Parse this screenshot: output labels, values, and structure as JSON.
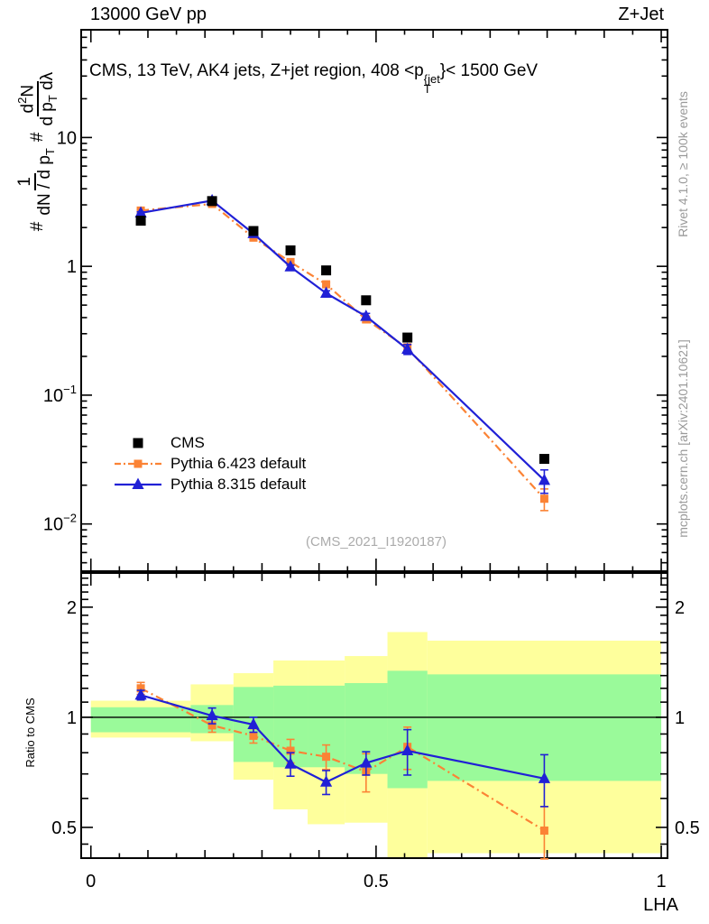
{
  "header": {
    "left": "13000 GeV pp",
    "right": "Z+Jet"
  },
  "title_parts": {
    "prefix": "CMS, 13 TeV, AK4 jets, Z+jet region, 408 <p",
    "sup": "{jet",
    "sub": "T",
    "suffix": "}< 1500 GeV"
  },
  "ylabel_parts": {
    "hash1": "#",
    "f1_num": "1",
    "f1_den_a": "dN / d p",
    "f1_den_sub": "T",
    "hash2": "#",
    "f2_num_a": "d",
    "f2_num_sup": "2",
    "f2_num_b": "N",
    "f2_den_a": "d p",
    "f2_den_sub": "T",
    "f2_den_b": " dλ"
  },
  "ratio_ylabel": "Ratio to CMS",
  "watermark": "(CMS_2021_I1920187)",
  "side_notes": {
    "top": "Rivet 4.1.0, ≥ 100k events",
    "bottom": "mcplots.cern.ch [arXiv:2401.10621]"
  },
  "legend": {
    "items": [
      {
        "label": "CMS",
        "color": "#000000",
        "marker": "square",
        "line": "none",
        "marker_size": 11
      },
      {
        "label": "Pythia 6.423 default",
        "color": "#fb8335",
        "marker": "square",
        "line": "dashdot",
        "marker_size": 9
      },
      {
        "label": "Pythia 8.315 default",
        "color": "#2020d6",
        "marker": "triangle",
        "line": "solid",
        "marker_size": 12
      }
    ]
  },
  "chart_data": {
    "type": "line",
    "title": "CMS, 13 TeV, AK4 jets, Z+jet region, 408 < pT{jet} < 1500 GeV",
    "xlabel": "LHA",
    "ylabel": "# 1/(dN/dpT) # d²N/(dpT dλ)",
    "ratio_label": "Ratio to CMS",
    "bin_edges": [
      0,
      0.175,
      0.25,
      0.32,
      0.38,
      0.445,
      0.52,
      0.59,
      1.0
    ],
    "x": [
      0.0875,
      0.2125,
      0.285,
      0.35,
      0.4125,
      0.4825,
      0.555,
      0.795
    ],
    "series": [
      {
        "name": "CMS",
        "kind": "data",
        "color": "#000000",
        "marker": "square",
        "marker_size": 11,
        "line": "none",
        "y": [
          2.26,
          3.21,
          1.88,
          1.33,
          0.93,
          0.545,
          0.28,
          0.032
        ]
      },
      {
        "name": "Pythia 6.423 default",
        "kind": "mc",
        "color": "#fb8335",
        "marker": "square",
        "marker_size": 9,
        "line": "dashdot",
        "y": [
          2.71,
          3.05,
          1.67,
          1.08,
          0.725,
          0.387,
          0.232,
          0.0157
        ],
        "y_err": [
          0.06,
          0.05,
          0.04,
          0.03,
          0.025,
          0.02,
          0.018,
          0.003
        ],
        "ratio": [
          1.2,
          0.95,
          0.89,
          0.81,
          0.78,
          0.71,
          0.83,
          0.49
        ],
        "ratio_err": [
          0.045,
          0.04,
          0.04,
          0.06,
          0.06,
          0.085,
          0.11,
          0.08
        ]
      },
      {
        "name": "Pythia 8.315 default",
        "kind": "mc",
        "color": "#2020d6",
        "marker": "triangle",
        "marker_size": 12,
        "line": "solid",
        "y": [
          2.6,
          3.24,
          1.795,
          0.991,
          0.618,
          0.409,
          0.227,
          0.0218
        ],
        "y_err": [
          0.05,
          0.05,
          0.04,
          0.03,
          0.028,
          0.022,
          0.02,
          0.0045
        ],
        "ratio": [
          1.15,
          1.01,
          0.955,
          0.745,
          0.665,
          0.75,
          0.81,
          0.68
        ],
        "ratio_err": [
          0.035,
          0.05,
          0.045,
          0.055,
          0.05,
          0.055,
          0.115,
          0.11
        ]
      }
    ],
    "ratio_bands": {
      "edges": [
        0,
        0.175,
        0.25,
        0.32,
        0.38,
        0.445,
        0.52,
        0.59,
        1.0
      ],
      "yellow": [
        [
          0.88,
          1.11
        ],
        [
          0.86,
          1.23
        ],
        [
          0.675,
          1.32
        ],
        [
          0.56,
          1.43
        ],
        [
          0.51,
          1.43
        ],
        [
          0.515,
          1.47
        ],
        [
          0.41,
          1.71
        ],
        [
          0.425,
          1.62
        ]
      ],
      "green": [
        [
          0.91,
          1.065
        ],
        [
          0.905,
          1.08
        ],
        [
          0.755,
          1.21
        ],
        [
          0.73,
          1.22
        ],
        [
          0.73,
          1.22
        ],
        [
          0.7,
          1.24
        ],
        [
          0.64,
          1.34
        ],
        [
          0.67,
          1.31
        ]
      ],
      "yellow_color": "#feff9c",
      "green_color": "#9afa9a"
    },
    "axes": {
      "x": {
        "min": -0.017,
        "max": 1.011,
        "majors": [
          {
            "v": 0,
            "label": "0"
          },
          {
            "v": 0.5,
            "label": "0.5"
          },
          {
            "v": 1,
            "label": "1"
          }
        ],
        "medium_step": 0.1,
        "minor_step": 0.05
      },
      "y_main": {
        "scale": "log",
        "min": 0.0043,
        "max": 68.6,
        "majors": [
          {
            "v": 10,
            "base": "10",
            "exp": ""
          },
          {
            "v": 1,
            "base": "1",
            "exp": ""
          },
          {
            "v": 0.1,
            "base": "10",
            "exp": "−1"
          },
          {
            "v": 0.01,
            "base": "10",
            "exp": "−2"
          }
        ]
      },
      "y_ratio": {
        "scale": "log",
        "min": 0.412,
        "max": 2.48,
        "majors": [
          {
            "v": 2,
            "label": "2"
          },
          {
            "v": 1,
            "label": "1"
          },
          {
            "v": 0.5,
            "label": "0.5"
          }
        ],
        "minors": [
          0.45,
          0.6,
          0.7,
          0.8,
          0.9,
          1.1,
          1.2,
          1.3,
          1.4,
          1.5,
          1.6,
          1.7,
          1.8,
          1.9,
          2.1,
          2.2,
          2.3,
          2.4
        ]
      }
    }
  }
}
